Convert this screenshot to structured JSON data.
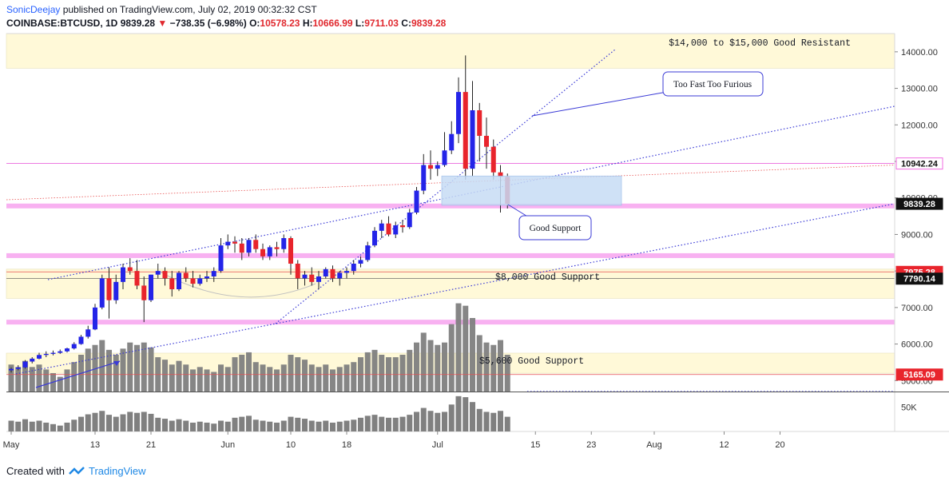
{
  "header": {
    "user": "SonicDeejay",
    "published": " published on TradingView.com, July 02, 2019 00:32:32 CST",
    "symbol": "COINBASE:BTCUSD, 1D",
    "last": "9839.28",
    "change_arrow": "▼",
    "change": "−738.35 (−6.98%)",
    "open_label": "O:",
    "open": "10578.23",
    "high_label": "H:",
    "high": "10666.99",
    "low_label": "L:",
    "low": "9711.03",
    "close_label": "C:",
    "close": "9839.28"
  },
  "footer": {
    "created_with": "Created with",
    "brand": "TradingView"
  },
  "colors": {
    "up": "#2424e8",
    "down": "#e8242c",
    "volume": "#808080",
    "zone": "#fff9d8",
    "pink": "#f7a8f0",
    "trend": "#3b3bd6",
    "box": "#c7dcf5"
  },
  "chart_data": {
    "type": "candlestick",
    "y_price_range": [
      4700,
      14500
    ],
    "price_ticks": [
      {
        "value": 5000,
        "label": "5000.00"
      },
      {
        "value": 6000,
        "label": "6000.00"
      },
      {
        "value": 7000,
        "label": "7000.00"
      },
      {
        "value": 8000,
        "label": "8000.00"
      },
      {
        "value": 9000,
        "label": "9000.00"
      },
      {
        "value": 10000,
        "label": "10000.00"
      },
      {
        "value": 11000,
        "label": "11000.00"
      },
      {
        "value": 12000,
        "label": "12000.00"
      },
      {
        "value": 13000,
        "label": "13000.00"
      },
      {
        "value": 14000,
        "label": "14000.00"
      }
    ],
    "volume_tick": {
      "label": "50K",
      "value": 50
    },
    "x_ticks": [
      {
        "index": 0,
        "label": "May"
      },
      {
        "index": 12,
        "label": "13"
      },
      {
        "index": 20,
        "label": "21"
      },
      {
        "index": 31,
        "label": "Jun"
      },
      {
        "index": 40,
        "label": "10"
      },
      {
        "index": 48,
        "label": "18"
      },
      {
        "index": 61,
        "label": "Jul"
      },
      {
        "index": 75,
        "label": "15"
      },
      {
        "index": 83,
        "label": "23"
      },
      {
        "index": 92,
        "label": "Aug"
      },
      {
        "index": 102,
        "label": "12"
      },
      {
        "index": 110,
        "label": "20"
      }
    ],
    "price_badges": [
      {
        "value": 10942.24,
        "label": "10942.24",
        "style": "pink"
      },
      {
        "value": 9839.28,
        "label": "9839.28",
        "style": "black"
      },
      {
        "value": 7975.28,
        "label": "7975.28",
        "style": "red"
      },
      {
        "value": 7790.14,
        "label": "7790.14",
        "style": "black"
      },
      {
        "value": 5165.09,
        "label": "5165.09",
        "style": "red"
      }
    ],
    "candles": [
      [
        5280,
        5360,
        5220,
        5320,
        22
      ],
      [
        5320,
        5420,
        5280,
        5360,
        20
      ],
      [
        5360,
        5560,
        5330,
        5520,
        25
      ],
      [
        5520,
        5640,
        5470,
        5600,
        20
      ],
      [
        5600,
        5760,
        5580,
        5700,
        22
      ],
      [
        5700,
        5800,
        5640,
        5730,
        18
      ],
      [
        5730,
        5820,
        5690,
        5760,
        15
      ],
      [
        5760,
        5850,
        5730,
        5800,
        12
      ],
      [
        5800,
        5900,
        5770,
        5880,
        18
      ],
      [
        5880,
        6050,
        5850,
        6000,
        24
      ],
      [
        6000,
        6250,
        5980,
        6200,
        30
      ],
      [
        6200,
        6500,
        6150,
        6400,
        35
      ],
      [
        6400,
        7100,
        6380,
        7000,
        38
      ],
      [
        7000,
        7900,
        6950,
        7800,
        42
      ],
      [
        7800,
        8100,
        6700,
        7200,
        34
      ],
      [
        7200,
        7900,
        7100,
        7700,
        30
      ],
      [
        7700,
        8200,
        7500,
        8100,
        35
      ],
      [
        8100,
        8350,
        7900,
        8000,
        40
      ],
      [
        8000,
        8300,
        7500,
        7600,
        38
      ],
      [
        7600,
        7850,
        6600,
        7200,
        40
      ],
      [
        7200,
        7900,
        7150,
        7900,
        36
      ],
      [
        7900,
        8200,
        7800,
        8000,
        28
      ],
      [
        8000,
        8100,
        7600,
        7800,
        26
      ],
      [
        7800,
        8000,
        7300,
        7500,
        22
      ],
      [
        7500,
        8000,
        7450,
        7950,
        25
      ],
      [
        7950,
        8100,
        7700,
        7800,
        22
      ],
      [
        7800,
        8000,
        7550,
        7650,
        18
      ],
      [
        7650,
        7900,
        7600,
        7800,
        20
      ],
      [
        7800,
        8000,
        7700,
        7850,
        18
      ],
      [
        7850,
        8100,
        7700,
        8000,
        16
      ],
      [
        8000,
        8900,
        7950,
        8700,
        22
      ],
      [
        8700,
        9000,
        8600,
        8800,
        20
      ],
      [
        8800,
        8950,
        8500,
        8750,
        28
      ],
      [
        8750,
        8900,
        8300,
        8500,
        30
      ],
      [
        8500,
        8900,
        8400,
        8850,
        32
      ],
      [
        8850,
        9000,
        8500,
        8600,
        24
      ],
      [
        8600,
        8750,
        8300,
        8400,
        22
      ],
      [
        8400,
        8700,
        8300,
        8650,
        20
      ],
      [
        8650,
        8800,
        8400,
        8600,
        18
      ],
      [
        8600,
        9000,
        8500,
        8900,
        22
      ],
      [
        8900,
        8950,
        7900,
        8200,
        30
      ],
      [
        8200,
        8300,
        7500,
        7800,
        28
      ],
      [
        7800,
        8000,
        7600,
        7900,
        26
      ],
      [
        7900,
        8100,
        7600,
        7700,
        22
      ],
      [
        7700,
        8000,
        7500,
        7850,
        20
      ],
      [
        7850,
        8100,
        7800,
        8050,
        22
      ],
      [
        8050,
        8150,
        7700,
        7800,
        18
      ],
      [
        7800,
        8000,
        7600,
        7950,
        20
      ],
      [
        7950,
        8100,
        7800,
        8000,
        22
      ],
      [
        8000,
        8300,
        7900,
        8200,
        24
      ],
      [
        8200,
        8400,
        8100,
        8300,
        28
      ],
      [
        8300,
        8800,
        8250,
        8700,
        32
      ],
      [
        8700,
        9200,
        8650,
        9100,
        34
      ],
      [
        9100,
        9400,
        8900,
        9300,
        30
      ],
      [
        9300,
        9500,
        8950,
        9000,
        28
      ],
      [
        9000,
        9350,
        8900,
        9250,
        28
      ],
      [
        9250,
        9400,
        9050,
        9200,
        30
      ],
      [
        9200,
        9700,
        9150,
        9600,
        34
      ],
      [
        9600,
        10300,
        9550,
        10200,
        40
      ],
      [
        10200,
        11200,
        10100,
        10900,
        48
      ],
      [
        10900,
        11300,
        10500,
        10800,
        42
      ],
      [
        10800,
        11000,
        10600,
        10900,
        38
      ],
      [
        10900,
        11800,
        10850,
        11300,
        40
      ],
      [
        11300,
        12100,
        11200,
        11750,
        55
      ],
      [
        11750,
        13300,
        11500,
        12900,
        72
      ],
      [
        12900,
        13900,
        10500,
        10800,
        70
      ],
      [
        10800,
        13200,
        10600,
        12400,
        60
      ],
      [
        12400,
        12600,
        11000,
        11700,
        46
      ],
      [
        11700,
        12200,
        10800,
        11400,
        40
      ],
      [
        11400,
        11600,
        10500,
        10700,
        38
      ],
      [
        10700,
        10900,
        9600,
        10580,
        42
      ],
      [
        10578,
        10667,
        9711,
        9839,
        30
      ]
    ],
    "volume_candle_count": 72,
    "annotations": [
      {
        "text": "$14,000 to $15,000 Good Resistant"
      },
      {
        "text": "$8,000 Good Support"
      },
      {
        "text": "$5,600 Good Support"
      },
      {
        "text": "Too Fast Too Furious"
      },
      {
        "text": "Good Support"
      }
    ],
    "zones": [
      {
        "from": 13550,
        "to": 14500,
        "kind": "resistance"
      },
      {
        "from": 7250,
        "to": 8050,
        "kind": "support"
      },
      {
        "from": 5200,
        "to": 5750,
        "kind": "support"
      }
    ],
    "pink_bands": [
      9780,
      8420,
      6600
    ],
    "grid": false,
    "legend": "none"
  }
}
